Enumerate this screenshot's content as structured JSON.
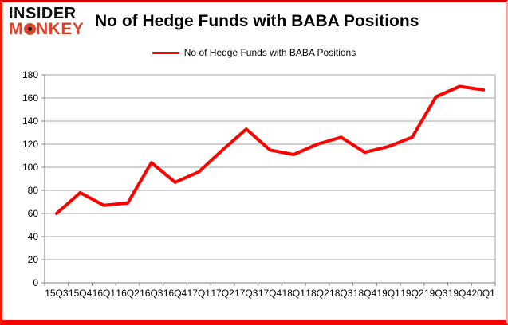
{
  "logo": {
    "line1": "INSIDER",
    "monkey_prefix": "M",
    "monkey_suffix": "NKEY"
  },
  "header": {
    "title": "No of Hedge Funds with BABA Positions"
  },
  "legend": {
    "label": "No of Hedge Funds with BABA Positions",
    "line_color": "#fe0000"
  },
  "colors": {
    "series_red": "#fe0000",
    "logo_red": "#d9432c",
    "gridline_gray": "#a6a6a6",
    "axis_gray": "#808080",
    "frame_border_red": "#ff0000"
  },
  "chart_data": {
    "type": "line",
    "title": "No of Hedge Funds with BABA Positions",
    "categories": [
      "15Q3",
      "15Q4",
      "16Q1",
      "16Q2",
      "16Q3",
      "16Q4",
      "17Q1",
      "17Q2",
      "17Q3",
      "17Q4",
      "18Q1",
      "18Q2",
      "18Q3",
      "18Q4",
      "19Q1",
      "19Q2",
      "19Q3",
      "19Q4",
      "20Q1"
    ],
    "series": [
      {
        "name": "No of Hedge Funds with BABA Positions",
        "color": "#fe0000",
        "values": [
          60,
          78,
          67,
          69,
          104,
          87,
          96,
          115,
          133,
          115,
          111,
          120,
          126,
          113,
          118,
          126,
          161,
          170,
          167
        ]
      }
    ],
    "xlabel": "",
    "ylabel": "",
    "ylim": [
      0,
      180
    ],
    "ytick_step": 20,
    "grid": true,
    "legend_position": "top"
  }
}
